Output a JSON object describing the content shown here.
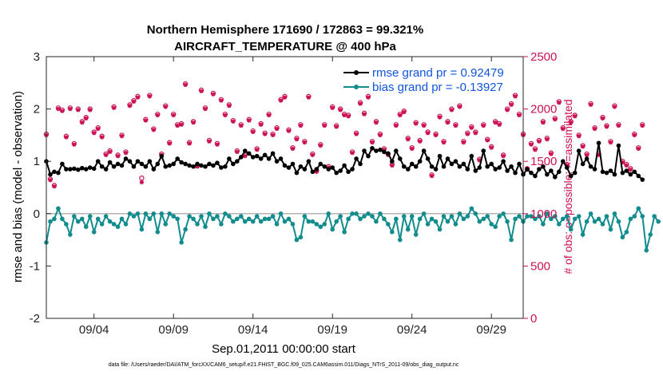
{
  "colors": {
    "rmse": "#000000",
    "bias": "#128c8c",
    "obs": "#cc1155",
    "legend_text": "#1155dd",
    "zero_line": "#b4b4b4"
  },
  "chart_data": {
    "type": "line",
    "title": "Northern Hemisphere 171690 / 172863 = 99.321%",
    "subtitle": "AIRCRAFT_TEMPERATURE @ 400 hPa",
    "xlabel": "Sep.01,2011 00:00:00 start",
    "ylabel": "rmse and bias (model - observation)",
    "y2label": "# of obs: o=possible; ×=assimilated",
    "footnote": "data file: /Users/raeder/DAI/ATM_forcXX/CAM6_setup/f.e21.FHIST_BGC.f09_025.CAM6assim.011/Diags_NTrS_2011-09/obs_diag_output.nc",
    "xlim": [
      0.5,
      30.5
    ],
    "ylim": [
      -2,
      3
    ],
    "y2lim": [
      0,
      2500
    ],
    "x_ticks": [
      3.5,
      8.5,
      13.5,
      18.5,
      23.5,
      28.5
    ],
    "x_tick_labels": [
      "09/04",
      "09/09",
      "09/14",
      "09/19",
      "09/24",
      "09/29"
    ],
    "y_ticks": [
      -2,
      -1,
      0,
      1,
      2,
      3
    ],
    "y_tick_labels": [
      "-2",
      "-1",
      "0",
      "1",
      "2",
      "3"
    ],
    "y2_ticks": [
      0,
      500,
      1000,
      1500,
      2000,
      2500
    ],
    "y2_tick_labels": [
      "0",
      "500",
      "1000",
      "1500",
      "2000",
      "2500"
    ],
    "legend": [
      {
        "name": "rmse",
        "label": "rmse grand pr = 0.92479"
      },
      {
        "name": "bias",
        "label": "bias grand pr = -0.13927"
      }
    ],
    "series": [
      {
        "name": "rmse",
        "x_start": 0.5,
        "x_step": 0.25,
        "values": [
          1.0,
          0.75,
          0.8,
          0.78,
          0.95,
          0.85,
          0.85,
          0.86,
          0.84,
          0.87,
          0.85,
          0.88,
          0.86,
          1.0,
          0.9,
          0.85,
          0.98,
          0.9,
          0.95,
          0.92,
          1.05,
          1.0,
          0.9,
          1.0,
          0.95,
          0.9,
          1.0,
          0.85,
          0.95,
          1.1,
          0.9,
          0.92,
          0.95,
          1.05,
          0.98,
          0.95,
          0.92,
          0.9,
          0.95,
          0.92,
          0.9,
          0.95,
          0.92,
          0.97,
          0.88,
          0.9,
          1.05,
          0.95,
          1.0,
          1.08,
          1.2,
          1.15,
          1.08,
          1.1,
          1.05,
          1.12,
          1.05,
          1.15,
          1.0,
          1.05,
          0.92,
          0.88,
          0.95,
          0.78,
          0.9,
          0.85,
          1.0,
          0.8,
          0.85,
          0.95,
          0.9,
          0.85,
          0.88,
          0.78,
          0.82,
          0.92,
          0.8,
          0.85,
          1.05,
          0.95,
          1.2,
          1.1,
          1.25,
          1.2,
          1.22,
          1.18,
          1.15,
          1.0,
          1.2,
          1.05,
          0.9,
          0.85,
          0.95,
          0.9,
          1.0,
          1.2,
          1.05,
          0.9,
          0.85,
          1.1,
          0.9,
          1.05,
          0.95,
          1.0,
          0.9,
          0.95,
          0.85,
          1.1,
          0.82,
          0.88,
          1.2,
          0.9,
          0.95,
          0.85,
          0.88,
          1.0,
          0.82,
          0.9,
          0.78,
          0.95,
          0.75,
          0.85,
          0.78,
          0.72,
          0.85,
          0.9,
          0.75,
          0.82,
          0.7,
          0.8,
          1.0,
          0.88,
          0.72,
          0.78,
          1.2,
          0.95,
          1.05,
          0.9,
          0.85,
          1.35,
          0.8,
          0.78,
          0.82,
          0.75,
          1.3,
          0.78,
          0.82,
          0.75,
          0.8,
          0.72,
          0.65
        ]
      },
      {
        "name": "bias",
        "x_start": 0.5,
        "x_step": 0.25,
        "values": [
          -0.55,
          -0.15,
          -0.1,
          0.1,
          -0.1,
          -0.2,
          -0.4,
          -0.05,
          -0.15,
          -0.1,
          -0.25,
          -0.05,
          -0.35,
          -0.1,
          -0.2,
          -0.05,
          -0.15,
          -0.2,
          -0.25,
          -0.1,
          -0.2,
          0.0,
          -0.05,
          0.0,
          -0.3,
          0.0,
          -0.1,
          0.0,
          -0.35,
          0.0,
          -0.2,
          0.0,
          -0.05,
          -0.1,
          -0.55,
          -0.3,
          -0.05,
          -0.1,
          -0.2,
          -0.05,
          -0.25,
          0.0,
          -0.1,
          -0.05,
          -0.2,
          0.0,
          -0.05,
          -0.15,
          -0.1,
          -0.05,
          -0.15,
          -0.1,
          -0.15,
          -0.05,
          -0.15,
          -0.1,
          -0.1,
          -0.05,
          -0.2,
          0.0,
          -0.15,
          -0.1,
          -0.2,
          -0.5,
          -0.45,
          -0.05,
          -0.15,
          -0.15,
          -0.2,
          -0.25,
          -0.2,
          0.0,
          -0.3,
          -0.15,
          -0.05,
          -0.35,
          -0.1,
          0.0,
          0.0,
          -0.1,
          -0.05,
          0.0,
          -0.05,
          -0.15,
          0.0,
          -0.1,
          -0.2,
          -0.35,
          -0.1,
          -0.5,
          -0.05,
          -0.3,
          -0.05,
          -0.4,
          -0.1,
          0.0,
          -0.2,
          -0.1,
          -0.15,
          -0.3,
          -0.05,
          -0.15,
          -0.05,
          -0.2,
          0.0,
          -0.1,
          -0.05,
          0.1,
          0.0,
          -0.15,
          -0.1,
          -0.05,
          -0.2,
          -0.25,
          -0.05,
          0.0,
          -0.15,
          -0.5,
          -0.1,
          -0.05,
          -0.15,
          -0.05,
          -0.05,
          -0.1,
          -0.05,
          -0.2,
          0.0,
          -0.1,
          -0.05,
          -0.2,
          -0.1,
          -0.05,
          -0.3,
          -0.1,
          -0.05,
          -0.4,
          -0.15,
          0.0,
          -0.15,
          -0.1,
          -0.2,
          -0.05,
          -0.3,
          0.0,
          -0.15,
          -0.45,
          -0.35,
          -0.1,
          -0.05,
          0.1,
          -0.05,
          -0.7,
          -0.4,
          -0.05,
          -0.15
        ]
      },
      {
        "name": "obs_possible",
        "x_start": 0.5,
        "x_step": 0.25,
        "values": [
          1760,
          1330,
          1270,
          2010,
          1990,
          1740,
          2010,
          1670,
          2000,
          1880,
          1920,
          2000,
          1780,
          1820,
          1740,
          1570,
          1600,
          2020,
          1560,
          1750,
          1590,
          2040,
          2080,
          2120,
          1340,
          1900,
          2130,
          1810,
          1950,
          1570,
          2030,
          1680,
          1950,
          1850,
          1860,
          2240,
          1680,
          1880,
          1460,
          2180,
          2010,
          1700,
          2150,
          1670,
          2090,
          1950,
          2040,
          1890,
          1600,
          1850,
          1560,
          1900,
          1790,
          1620,
          1860,
          1770,
          1950,
          1760,
          1820,
          2090,
          2120,
          1800,
          1630,
          1720,
          1850,
          1690,
          2120,
          1570,
          1410,
          1660,
          1850,
          1450,
          2020,
          1840,
          2000,
          1950,
          1940,
          1590,
          1770,
          2060,
          1960,
          2120,
          1690,
          1880,
          1760,
          1620,
          1570,
          1470,
          1850,
          1950,
          1980,
          1720,
          1630,
          1870,
          1700,
          1850,
          1780,
          1370,
          1760,
          1930,
          1690,
          1880,
          2000,
          1850,
          2030,
          1690,
          1770,
          1830,
          1780,
          1520,
          1850,
          1710,
          1640,
          1880,
          1860,
          1560,
          2000,
          2050,
          2130,
          1950,
          1760,
          1430,
          1670,
          1620,
          1700,
          1880,
          1720,
          1580,
          1910,
          2070,
          1820,
          1470,
          1880,
          1940,
          1750,
          1650,
          1570,
          2050,
          1820,
          1570,
          1920,
          1840,
          1690,
          2030,
          1850,
          1500,
          1470,
          1430,
          1760,
          1630,
          1850
        ]
      },
      {
        "name": "obs_assimilated",
        "x_start": 0.5,
        "x_step": 0.25,
        "values": [
          1750,
          1320,
          1260,
          2000,
          1980,
          1730,
          2000,
          1660,
          1990,
          1870,
          1910,
          1990,
          1770,
          1810,
          1730,
          1560,
          1590,
          2010,
          1550,
          1740,
          1580,
          2030,
          2070,
          2110,
          1300,
          1890,
          2120,
          1800,
          1940,
          1560,
          2020,
          1670,
          1940,
          1840,
          1850,
          2230,
          1670,
          1870,
          1450,
          2170,
          2000,
          1690,
          2140,
          1660,
          2080,
          1940,
          2030,
          1880,
          1590,
          1840,
          1550,
          1890,
          1780,
          1610,
          1850,
          1760,
          1940,
          1750,
          1810,
          2080,
          2110,
          1790,
          1620,
          1710,
          1840,
          1680,
          2110,
          1560,
          1400,
          1650,
          1840,
          1440,
          2010,
          1830,
          1990,
          1940,
          1930,
          1580,
          1760,
          2050,
          1950,
          2110,
          1680,
          1870,
          1750,
          1610,
          1560,
          1460,
          1840,
          1940,
          1970,
          1710,
          1620,
          1860,
          1690,
          1840,
          1770,
          1360,
          1750,
          1920,
          1680,
          1870,
          1990,
          1840,
          2020,
          1680,
          1760,
          1820,
          1770,
          1510,
          1840,
          1700,
          1630,
          1870,
          1850,
          1550,
          1990,
          2040,
          2120,
          1940,
          1750,
          1420,
          1660,
          1610,
          1690,
          1870,
          1710,
          1570,
          1900,
          2060,
          1810,
          1460,
          1870,
          1930,
          1740,
          1640,
          1560,
          2040,
          1810,
          1560,
          1910,
          1830,
          1680,
          2020,
          1840,
          1490,
          1460,
          1420,
          1750,
          1620,
          1840
        ]
      }
    ]
  }
}
